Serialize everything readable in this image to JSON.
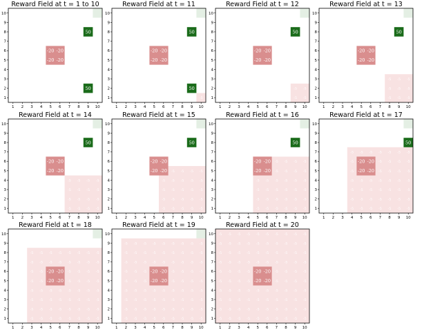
{
  "chart_data": {
    "type": "heatmap",
    "grid": {
      "x_ticks": [
        1,
        2,
        3,
        4,
        5,
        6,
        7,
        8,
        9,
        10
      ],
      "y_ticks": [
        1,
        2,
        3,
        4,
        5,
        6,
        7,
        8,
        9,
        10
      ]
    },
    "colors": {
      "goal": "#1a6b1a",
      "goal_label": "#ffffff",
      "penalty": "#d98e8e",
      "penalty_label": "#ffffff",
      "region": "#f8e2e2",
      "region_label": "#ffffff",
      "corner": "#e4efe4",
      "axis": "#000000"
    },
    "panels": [
      {
        "title": "Reward Field at t = 1 to 10",
        "goal_cells": [
          {
            "x": 9,
            "y": 8,
            "value": "50"
          },
          {
            "x": 9,
            "y": 2,
            "value": "50"
          }
        ],
        "penalty_cells": [
          {
            "x": 5,
            "y": 6,
            "value": "-20"
          },
          {
            "x": 6,
            "y": 6,
            "value": "-20"
          },
          {
            "x": 5,
            "y": 5,
            "value": "-20"
          },
          {
            "x": 6,
            "y": 5,
            "value": "-20"
          }
        ],
        "corner_cells": [
          {
            "x": 10,
            "y": 10
          }
        ],
        "region": null
      },
      {
        "title": "Reward Field at t = 11",
        "goal_cells": [
          {
            "x": 9,
            "y": 8,
            "value": "50"
          },
          {
            "x": 9,
            "y": 2,
            "value": "50"
          }
        ],
        "penalty_cells": [
          {
            "x": 5,
            "y": 6,
            "value": "-20"
          },
          {
            "x": 6,
            "y": 6,
            "value": "-20"
          },
          {
            "x": 5,
            "y": 5,
            "value": "-20"
          },
          {
            "x": 6,
            "y": 5,
            "value": "-20"
          }
        ],
        "corner_cells": [
          {
            "x": 10,
            "y": 10
          }
        ],
        "region": {
          "x_min": 10,
          "x_max": 10,
          "y_min": 1,
          "y_max": 1,
          "value": "-5"
        }
      },
      {
        "title": "Reward Field at t = 12",
        "goal_cells": [
          {
            "x": 9,
            "y": 8,
            "value": "50"
          }
        ],
        "penalty_cells": [
          {
            "x": 5,
            "y": 6,
            "value": "-20"
          },
          {
            "x": 6,
            "y": 6,
            "value": "-20"
          },
          {
            "x": 5,
            "y": 5,
            "value": "-20"
          },
          {
            "x": 6,
            "y": 5,
            "value": "-20"
          }
        ],
        "corner_cells": [
          {
            "x": 10,
            "y": 10
          }
        ],
        "region": {
          "x_min": 9,
          "x_max": 10,
          "y_min": 1,
          "y_max": 2,
          "value": "-5"
        }
      },
      {
        "title": "Reward Field at t = 13",
        "goal_cells": [
          {
            "x": 9,
            "y": 8,
            "value": "50"
          }
        ],
        "penalty_cells": [
          {
            "x": 5,
            "y": 6,
            "value": "-20"
          },
          {
            "x": 6,
            "y": 6,
            "value": "-20"
          },
          {
            "x": 5,
            "y": 5,
            "value": "-20"
          },
          {
            "x": 6,
            "y": 5,
            "value": "-20"
          }
        ],
        "corner_cells": [
          {
            "x": 10,
            "y": 10
          }
        ],
        "region": {
          "x_min": 8,
          "x_max": 10,
          "y_min": 1,
          "y_max": 3,
          "value": "-5"
        }
      },
      {
        "title": "Reward Field at t = 14",
        "goal_cells": [
          {
            "x": 9,
            "y": 8,
            "value": "50"
          }
        ],
        "penalty_cells": [
          {
            "x": 5,
            "y": 6,
            "value": "-20"
          },
          {
            "x": 6,
            "y": 6,
            "value": "-20"
          },
          {
            "x": 5,
            "y": 5,
            "value": "-20"
          },
          {
            "x": 6,
            "y": 5,
            "value": "-20"
          }
        ],
        "corner_cells": [
          {
            "x": 10,
            "y": 10
          }
        ],
        "region": {
          "x_min": 7,
          "x_max": 10,
          "y_min": 1,
          "y_max": 4,
          "value": "-5"
        }
      },
      {
        "title": "Reward Field at t = 15",
        "goal_cells": [
          {
            "x": 9,
            "y": 8,
            "value": "50"
          }
        ],
        "penalty_cells": [
          {
            "x": 5,
            "y": 6,
            "value": "-20"
          },
          {
            "x": 6,
            "y": 6,
            "value": "-20"
          },
          {
            "x": 5,
            "y": 5,
            "value": "-20"
          },
          {
            "x": 6,
            "y": 5,
            "value": "-20"
          }
        ],
        "corner_cells": [
          {
            "x": 10,
            "y": 10
          }
        ],
        "region": {
          "x_min": 6,
          "x_max": 10,
          "y_min": 1,
          "y_max": 5,
          "value": "-5"
        }
      },
      {
        "title": "Reward Field at t = 16",
        "goal_cells": [
          {
            "x": 9,
            "y": 8,
            "value": "50"
          }
        ],
        "penalty_cells": [
          {
            "x": 5,
            "y": 6,
            "value": "-20"
          },
          {
            "x": 6,
            "y": 6,
            "value": "-20"
          },
          {
            "x": 5,
            "y": 5,
            "value": "-20"
          },
          {
            "x": 6,
            "y": 5,
            "value": "-20"
          }
        ],
        "corner_cells": [
          {
            "x": 10,
            "y": 10
          }
        ],
        "region": {
          "x_min": 5,
          "x_max": 10,
          "y_min": 1,
          "y_max": 6,
          "value": "-5"
        }
      },
      {
        "title": "Reward Field at t = 17",
        "goal_cells": [
          {
            "x": 10,
            "y": 8,
            "value": "50"
          }
        ],
        "penalty_cells": [
          {
            "x": 5,
            "y": 6,
            "value": "-20"
          },
          {
            "x": 6,
            "y": 6,
            "value": "-20"
          },
          {
            "x": 5,
            "y": 5,
            "value": "-20"
          },
          {
            "x": 6,
            "y": 5,
            "value": "-20"
          }
        ],
        "corner_cells": [
          {
            "x": 10,
            "y": 10
          }
        ],
        "region": {
          "x_min": 4,
          "x_max": 10,
          "y_min": 1,
          "y_max": 7,
          "value": "-5"
        }
      },
      {
        "title": "Reward Field at t = 18",
        "goal_cells": [],
        "penalty_cells": [
          {
            "x": 5,
            "y": 6,
            "value": "-20"
          },
          {
            "x": 6,
            "y": 6,
            "value": "-20"
          },
          {
            "x": 5,
            "y": 5,
            "value": "-20"
          },
          {
            "x": 6,
            "y": 5,
            "value": "-20"
          }
        ],
        "corner_cells": [
          {
            "x": 10,
            "y": 10
          }
        ],
        "region": {
          "x_min": 3,
          "x_max": 10,
          "y_min": 1,
          "y_max": 8,
          "value": "-5"
        }
      },
      {
        "title": "Reward Field at t = 19",
        "goal_cells": [],
        "penalty_cells": [
          {
            "x": 5,
            "y": 6,
            "value": "-20"
          },
          {
            "x": 6,
            "y": 6,
            "value": "-20"
          },
          {
            "x": 5,
            "y": 5,
            "value": "-20"
          },
          {
            "x": 6,
            "y": 5,
            "value": "-20"
          }
        ],
        "corner_cells": [
          {
            "x": 10,
            "y": 10
          }
        ],
        "region": {
          "x_min": 2,
          "x_max": 10,
          "y_min": 1,
          "y_max": 9,
          "value": "-5"
        }
      },
      {
        "title": "Reward Field at t = 20",
        "goal_cells": [],
        "penalty_cells": [
          {
            "x": 5,
            "y": 6,
            "value": "-20"
          },
          {
            "x": 6,
            "y": 6,
            "value": "-20"
          },
          {
            "x": 5,
            "y": 5,
            "value": "-20"
          },
          {
            "x": 6,
            "y": 5,
            "value": "-20"
          }
        ],
        "corner_cells": [
          {
            "x": 10,
            "y": 10
          }
        ],
        "region": {
          "x_min": 1,
          "x_max": 10,
          "y_min": 1,
          "y_max": 10,
          "value": "-5"
        }
      }
    ]
  }
}
